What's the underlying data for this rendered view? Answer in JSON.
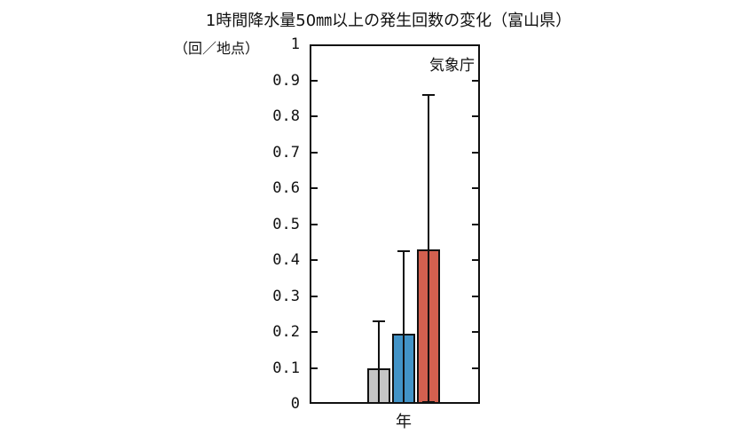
{
  "chart_data": {
    "type": "bar",
    "title": "1時間降水量50㎜以上の発生回数の変化（富山県）",
    "y_unit_label": "（回／地点）",
    "xlabel": "年",
    "ylabel": "（回／地点）",
    "source_annotation": "気象庁",
    "ylim": [
      0,
      1
    ],
    "ytick_step": 0.1,
    "ytick_labels": [
      "0",
      "0.1",
      "0.2",
      "0.3",
      "0.4",
      "0.5",
      "0.6",
      "0.7",
      "0.8",
      "0.9",
      "1"
    ],
    "grid": false,
    "legend": "none",
    "tick_style": "inward-left-and-right",
    "bars": [
      {
        "value": 0.1,
        "error_low": 0,
        "error_high": 0.23,
        "fill": "#c5c5c5"
      },
      {
        "value": 0.195,
        "error_low": 0,
        "error_high": 0.425,
        "fill": "#4293c7"
      },
      {
        "value": 0.43,
        "error_low": 0.005,
        "error_high": 0.86,
        "fill": "#d2604f"
      }
    ],
    "bar_edge_color": "#111111",
    "axis_color": "#111111",
    "background_color": "#ffffff"
  }
}
